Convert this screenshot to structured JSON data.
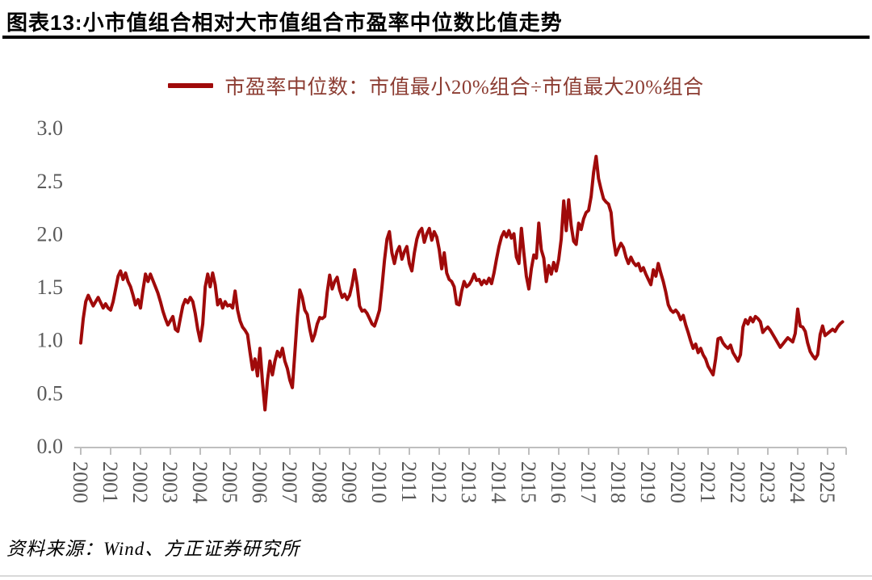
{
  "header": {
    "title": "图表13:小市值组合相对大市值组合市盈率中位数比值走势"
  },
  "legend": {
    "label": "市盈率中位数：市值最小20%组合÷市值最大20%组合"
  },
  "footer": {
    "source": "资料来源：Wind、方正证券研究所"
  },
  "colors": {
    "line": "#A00A0A",
    "legend_text": "#8C3C32",
    "axis_text": "#595959",
    "axis_line": "#BFBFBF",
    "title_rule": "#000000"
  },
  "chart_data": {
    "type": "line",
    "title": "小市值组合相对大市值组合市盈率中位数比值走势",
    "series_name": "市盈率中位数：市值最小20%组合÷市值最大20%组合",
    "legend_position": "top",
    "grid": "off",
    "ylim": [
      0.0,
      3.0
    ],
    "y_ticks": [
      0.0,
      0.5,
      1.0,
      1.5,
      2.0,
      2.5,
      3.0
    ],
    "x_tick_labels": [
      "2000",
      "2001",
      "2002",
      "2003",
      "2004",
      "2005",
      "2006",
      "2007",
      "2008",
      "2009",
      "2010",
      "2011",
      "2012",
      "2013",
      "2014",
      "2015",
      "2016",
      "2017",
      "2018",
      "2019",
      "2020",
      "2021",
      "2022",
      "2023",
      "2024",
      "2025"
    ],
    "x_start_year": 2000,
    "points_per_year": 12,
    "values": [
      0.97,
      1.2,
      1.36,
      1.42,
      1.37,
      1.32,
      1.36,
      1.4,
      1.35,
      1.3,
      1.34,
      1.3,
      1.28,
      1.36,
      1.48,
      1.6,
      1.65,
      1.57,
      1.63,
      1.55,
      1.5,
      1.42,
      1.33,
      1.38,
      1.3,
      1.47,
      1.62,
      1.55,
      1.62,
      1.56,
      1.5,
      1.44,
      1.36,
      1.27,
      1.2,
      1.14,
      1.18,
      1.22,
      1.1,
      1.08,
      1.2,
      1.32,
      1.38,
      1.35,
      1.4,
      1.36,
      1.25,
      1.1,
      0.99,
      1.15,
      1.5,
      1.62,
      1.5,
      1.63,
      1.52,
      1.33,
      1.38,
      1.3,
      1.36,
      1.32,
      1.33,
      1.3,
      1.46,
      1.28,
      1.18,
      1.12,
      1.09,
      1.05,
      0.88,
      0.72,
      0.82,
      0.66,
      0.92,
      0.6,
      0.34,
      0.62,
      0.8,
      0.67,
      0.8,
      0.89,
      0.84,
      0.92,
      0.8,
      0.73,
      0.62,
      0.55,
      0.88,
      1.22,
      1.47,
      1.4,
      1.28,
      1.24,
      1.1,
      0.99,
      1.05,
      1.15,
      1.21,
      1.2,
      1.22,
      1.45,
      1.61,
      1.48,
      1.55,
      1.59,
      1.47,
      1.4,
      1.43,
      1.38,
      1.42,
      1.52,
      1.66,
      1.52,
      1.32,
      1.27,
      1.28,
      1.25,
      1.2,
      1.15,
      1.13,
      1.2,
      1.28,
      1.5,
      1.75,
      1.95,
      2.02,
      1.82,
      1.72,
      1.83,
      1.88,
      1.76,
      1.83,
      1.88,
      1.72,
      1.65,
      1.82,
      1.95,
      2.02,
      2.05,
      1.92,
      2.0,
      2.05,
      1.94,
      2.02,
      1.97,
      1.85,
      1.67,
      1.82,
      1.63,
      1.57,
      1.55,
      1.5,
      1.34,
      1.33,
      1.46,
      1.55,
      1.5,
      1.52,
      1.56,
      1.62,
      1.56,
      1.57,
      1.52,
      1.56,
      1.53,
      1.58,
      1.53,
      1.63,
      1.76,
      1.88,
      1.97,
      2.02,
      1.97,
      2.03,
      1.96,
      2.0,
      1.78,
      1.72,
      2.05,
      1.82,
      1.6,
      1.48,
      1.67,
      1.8,
      1.77,
      2.1,
      1.85,
      1.77,
      1.55,
      1.7,
      1.62,
      1.73,
      1.65,
      1.76,
      1.95,
      2.31,
      2.03,
      2.32,
      2.08,
      1.93,
      1.9,
      2.1,
      2.04,
      2.14,
      2.2,
      2.22,
      2.35,
      2.58,
      2.73,
      2.52,
      2.42,
      2.33,
      2.3,
      2.28,
      2.2,
      1.95,
      1.8,
      1.86,
      1.91,
      1.87,
      1.78,
      1.72,
      1.78,
      1.73,
      1.7,
      1.72,
      1.65,
      1.68,
      1.62,
      1.57,
      1.52,
      1.66,
      1.6,
      1.72,
      1.63,
      1.55,
      1.45,
      1.33,
      1.28,
      1.26,
      1.28,
      1.25,
      1.19,
      1.23,
      1.14,
      1.07,
      0.99,
      0.92,
      0.96,
      0.88,
      0.92,
      0.86,
      0.82,
      0.75,
      0.71,
      0.67,
      0.82,
      1.01,
      1.02,
      0.97,
      0.94,
      0.92,
      0.95,
      0.88,
      0.84,
      0.8,
      0.86,
      1.12,
      1.19,
      1.15,
      1.21,
      1.17,
      1.22,
      1.2,
      1.17,
      1.07,
      1.1,
      1.12,
      1.09,
      1.05,
      1.01,
      0.97,
      0.93,
      0.96,
      0.99,
      1.02,
      1.0,
      0.98,
      1.06,
      1.29,
      1.13,
      1.12,
      1.08,
      0.97,
      0.89,
      0.85,
      0.82,
      0.86,
      1.05,
      1.13,
      1.04,
      1.06,
      1.08,
      1.1,
      1.08,
      1.12,
      1.15,
      1.17
    ]
  }
}
